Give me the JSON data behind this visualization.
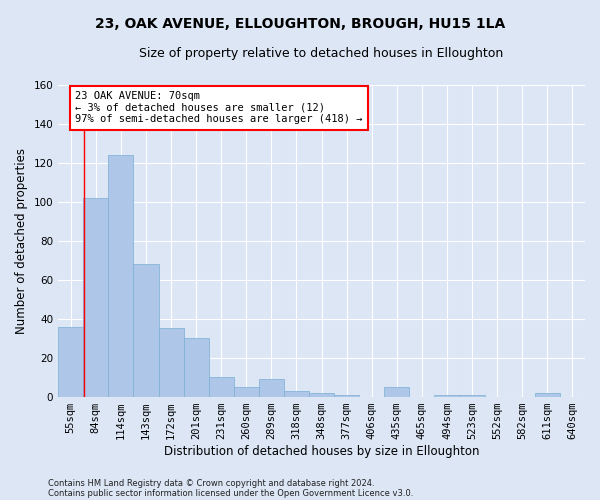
{
  "title": "23, OAK AVENUE, ELLOUGHTON, BROUGH, HU15 1LA",
  "subtitle": "Size of property relative to detached houses in Elloughton",
  "xlabel": "Distribution of detached houses by size in Elloughton",
  "ylabel": "Number of detached properties",
  "categories": [
    "55sqm",
    "84sqm",
    "114sqm",
    "143sqm",
    "172sqm",
    "201sqm",
    "231sqm",
    "260sqm",
    "289sqm",
    "318sqm",
    "348sqm",
    "377sqm",
    "406sqm",
    "435sqm",
    "465sqm",
    "494sqm",
    "523sqm",
    "552sqm",
    "582sqm",
    "611sqm",
    "640sqm"
  ],
  "values": [
    36,
    102,
    124,
    68,
    35,
    30,
    10,
    5,
    9,
    3,
    2,
    1,
    0,
    5,
    0,
    1,
    1,
    0,
    0,
    2,
    0
  ],
  "bar_color": "#aec6e8",
  "bar_edge_color": "#7aafd4",
  "ylim": [
    0,
    160
  ],
  "yticks": [
    0,
    20,
    40,
    60,
    80,
    100,
    120,
    140,
    160
  ],
  "annotation_line1": "23 OAK AVENUE: 70sqm",
  "annotation_line2": "← 3% of detached houses are smaller (12)",
  "annotation_line3": "97% of semi-detached houses are larger (418) →",
  "plot_bg_color": "#dce6f5",
  "fig_bg_color": "#dce6f5",
  "footer1": "Contains HM Land Registry data © Crown copyright and database right 2024.",
  "footer2": "Contains public sector information licensed under the Open Government Licence v3.0.",
  "title_fontsize": 10,
  "subtitle_fontsize": 9,
  "axis_label_fontsize": 8.5,
  "tick_fontsize": 7.5,
  "annotation_fontsize": 7.5,
  "footer_fontsize": 6.0
}
